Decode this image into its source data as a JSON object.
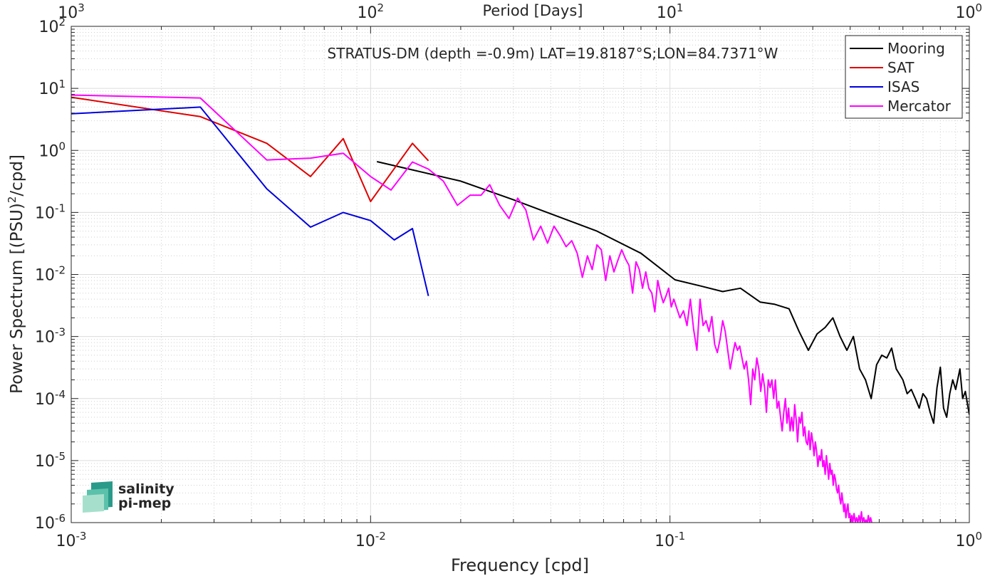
{
  "chart_data": {
    "type": "line",
    "title": "STRATUS-DM (depth =-0.9m) LAT=19.8187°S;LON=84.7371°W",
    "xlabel": "Frequency [cpd]",
    "ylabel_main": "Power Spectrum [(PSU)",
    "ylabel_sup": "2",
    "ylabel_tail": "/cpd]",
    "top_xlabel": "Period [Days]",
    "x_scale": "log",
    "y_scale": "log",
    "xlim": [
      0.001,
      1
    ],
    "ylim": [
      1e-06,
      100
    ],
    "grid": true,
    "legend_position": "top-right",
    "x_ticks": [
      {
        "value": 0.001,
        "base": "10",
        "exp": "-3"
      },
      {
        "value": 0.01,
        "base": "10",
        "exp": "-2"
      },
      {
        "value": 0.1,
        "base": "10",
        "exp": "-1"
      },
      {
        "value": 1,
        "base": "10",
        "exp": "0"
      }
    ],
    "top_ticks": [
      {
        "value": 0.001,
        "base": "10",
        "exp": "3"
      },
      {
        "value": 0.01,
        "base": "10",
        "exp": "2"
      },
      {
        "value": 0.1,
        "base": "10",
        "exp": "1"
      },
      {
        "value": 1,
        "base": "10",
        "exp": "0"
      }
    ],
    "y_ticks": [
      {
        "value": 100,
        "base": "10",
        "exp": "2"
      },
      {
        "value": 10,
        "base": "10",
        "exp": "1"
      },
      {
        "value": 1,
        "base": "10",
        "exp": "0"
      },
      {
        "value": 0.1,
        "base": "10",
        "exp": "-1"
      },
      {
        "value": 0.01,
        "base": "10",
        "exp": "-2"
      },
      {
        "value": 0.001,
        "base": "10",
        "exp": "-3"
      },
      {
        "value": 0.0001,
        "base": "10",
        "exp": "-4"
      },
      {
        "value": 1e-05,
        "base": "10",
        "exp": "-5"
      },
      {
        "value": 1e-06,
        "base": "10",
        "exp": "-6"
      }
    ],
    "series": [
      {
        "name": "Mooring",
        "color": "#000000",
        "points": [
          [
            0.0105,
            0.66
          ],
          [
            0.02,
            0.32
          ],
          [
            0.03,
            0.16
          ],
          [
            0.04,
            0.095
          ],
          [
            0.057,
            0.05
          ],
          [
            0.08,
            0.022
          ],
          [
            0.104,
            0.0082
          ],
          [
            0.127,
            0.0065
          ],
          [
            0.15,
            0.0053
          ],
          [
            0.172,
            0.006
          ],
          [
            0.2,
            0.0036
          ],
          [
            0.224,
            0.0033
          ],
          [
            0.25,
            0.0028
          ],
          [
            0.27,
            0.0012
          ],
          [
            0.29,
            0.0006
          ],
          [
            0.31,
            0.0011
          ],
          [
            0.33,
            0.0014
          ],
          [
            0.35,
            0.002
          ],
          [
            0.37,
            0.001
          ],
          [
            0.39,
            0.0006
          ],
          [
            0.41,
            0.001
          ],
          [
            0.43,
            0.0003
          ],
          [
            0.45,
            0.0002
          ],
          [
            0.47,
            0.0001
          ],
          [
            0.49,
            0.00035
          ],
          [
            0.51,
            0.0005
          ],
          [
            0.53,
            0.00045
          ],
          [
            0.55,
            0.00065
          ],
          [
            0.57,
            0.0003
          ],
          [
            0.6,
            0.0002
          ],
          [
            0.62,
            0.00012
          ],
          [
            0.64,
            0.00014
          ],
          [
            0.66,
            0.0001
          ],
          [
            0.68,
            7e-05
          ],
          [
            0.7,
            0.00012
          ],
          [
            0.72,
            0.0001
          ],
          [
            0.74,
            6e-05
          ],
          [
            0.76,
            4e-05
          ],
          [
            0.78,
            0.00015
          ],
          [
            0.8,
            0.00032
          ],
          [
            0.82,
            7e-05
          ],
          [
            0.84,
            5e-05
          ],
          [
            0.86,
            0.00012
          ],
          [
            0.88,
            0.0002
          ],
          [
            0.9,
            0.00014
          ],
          [
            0.93,
            0.0003
          ],
          [
            0.95,
            0.0001
          ],
          [
            0.97,
            0.00013
          ],
          [
            1.0,
            5.5e-05
          ]
        ]
      },
      {
        "name": "SAT",
        "color": "#e00000",
        "points": [
          [
            0.001,
            7.2
          ],
          [
            0.0027,
            3.5
          ],
          [
            0.0045,
            1.3
          ],
          [
            0.0063,
            0.38
          ],
          [
            0.0081,
            1.55
          ],
          [
            0.01,
            0.15
          ],
          [
            0.0138,
            1.3
          ],
          [
            0.0156,
            0.68
          ]
        ]
      },
      {
        "name": "ISAS",
        "color": "#0000dd",
        "points": [
          [
            0.001,
            3.9
          ],
          [
            0.0027,
            5.0
          ],
          [
            0.0045,
            0.24
          ],
          [
            0.0063,
            0.058
          ],
          [
            0.0081,
            0.1
          ],
          [
            0.01,
            0.074
          ],
          [
            0.012,
            0.036
          ],
          [
            0.0138,
            0.055
          ],
          [
            0.0156,
            0.0045
          ]
        ]
      },
      {
        "name": "Mercator",
        "color": "#ff00ff",
        "points": [
          [
            0.001,
            7.8
          ],
          [
            0.0027,
            7.0
          ],
          [
            0.0045,
            0.7
          ],
          [
            0.0063,
            0.75
          ],
          [
            0.0081,
            0.9
          ],
          [
            0.01,
            0.38
          ],
          [
            0.0117,
            0.23
          ],
          [
            0.0138,
            0.65
          ],
          [
            0.0156,
            0.5
          ],
          [
            0.0175,
            0.32
          ],
          [
            0.0195,
            0.13
          ],
          [
            0.0215,
            0.19
          ],
          [
            0.0234,
            0.19
          ],
          [
            0.025,
            0.28
          ],
          [
            0.027,
            0.13
          ],
          [
            0.029,
            0.08
          ],
          [
            0.031,
            0.17
          ],
          [
            0.033,
            0.11
          ],
          [
            0.035,
            0.036
          ],
          [
            0.037,
            0.06
          ],
          [
            0.039,
            0.032
          ],
          [
            0.041,
            0.06
          ],
          [
            0.043,
            0.042
          ],
          [
            0.045,
            0.028
          ],
          [
            0.047,
            0.035
          ],
          [
            0.049,
            0.022
          ],
          [
            0.051,
            0.009
          ],
          [
            0.053,
            0.02
          ],
          [
            0.055,
            0.012
          ],
          [
            0.057,
            0.03
          ],
          [
            0.059,
            0.025
          ],
          [
            0.061,
            0.008
          ],
          [
            0.063,
            0.02
          ],
          [
            0.065,
            0.011
          ],
          [
            0.067,
            0.017
          ],
          [
            0.069,
            0.025
          ],
          [
            0.071,
            0.018
          ],
          [
            0.073,
            0.014
          ],
          [
            0.075,
            0.005
          ],
          [
            0.077,
            0.016
          ],
          [
            0.079,
            0.012
          ],
          [
            0.081,
            0.006
          ],
          [
            0.083,
            0.011
          ],
          [
            0.085,
            0.006
          ],
          [
            0.087,
            0.005
          ],
          [
            0.089,
            0.0025
          ],
          [
            0.091,
            0.008
          ],
          [
            0.093,
            0.005
          ],
          [
            0.095,
            0.0035
          ],
          [
            0.097,
            0.0045
          ],
          [
            0.099,
            0.006
          ],
          [
            0.101,
            0.003
          ],
          [
            0.103,
            0.004
          ],
          [
            0.105,
            0.003
          ],
          [
            0.108,
            0.002
          ],
          [
            0.111,
            0.0026
          ],
          [
            0.114,
            0.0015
          ],
          [
            0.117,
            0.004
          ],
          [
            0.12,
            0.0013
          ],
          [
            0.123,
            0.0006
          ],
          [
            0.126,
            0.004
          ],
          [
            0.129,
            0.0015
          ],
          [
            0.132,
            0.0018
          ],
          [
            0.135,
            0.0012
          ],
          [
            0.138,
            0.0021
          ],
          [
            0.141,
            0.00075
          ],
          [
            0.144,
            0.00055
          ],
          [
            0.147,
            0.0009
          ],
          [
            0.15,
            0.0018
          ],
          [
            0.153,
            0.0012
          ],
          [
            0.156,
            0.0006
          ],
          [
            0.159,
            0.0003
          ],
          [
            0.162,
            0.0005
          ],
          [
            0.165,
            0.0008
          ],
          [
            0.168,
            0.0006
          ],
          [
            0.171,
            0.0007
          ],
          [
            0.174,
            0.00045
          ],
          [
            0.177,
            0.0003
          ],
          [
            0.18,
            0.0004
          ],
          [
            0.183,
            0.0002
          ],
          [
            0.186,
            8e-05
          ],
          [
            0.189,
            0.0003
          ],
          [
            0.192,
            0.0002
          ],
          [
            0.195,
            0.00045
          ],
          [
            0.198,
            0.0003
          ],
          [
            0.201,
            0.00013
          ],
          [
            0.204,
            0.00025
          ],
          [
            0.207,
            0.00015
          ],
          [
            0.21,
            6e-05
          ],
          [
            0.213,
            0.0002
          ],
          [
            0.216,
            0.00015
          ],
          [
            0.219,
            0.0002
          ],
          [
            0.222,
            0.0001
          ],
          [
            0.225,
            0.0002
          ],
          [
            0.228,
            7e-05
          ],
          [
            0.231,
            9e-05
          ],
          [
            0.234,
            5e-05
          ],
          [
            0.237,
            3e-05
          ],
          [
            0.24,
            6e-05
          ],
          [
            0.243,
            0.0001
          ],
          [
            0.246,
            4e-05
          ],
          [
            0.249,
            7e-05
          ],
          [
            0.252,
            3e-05
          ],
          [
            0.255,
            5e-05
          ],
          [
            0.258,
            3e-05
          ],
          [
            0.261,
            8e-05
          ],
          [
            0.264,
            4.5e-05
          ],
          [
            0.267,
            2e-05
          ],
          [
            0.27,
            5e-05
          ],
          [
            0.273,
            4e-05
          ],
          [
            0.276,
            6e-05
          ],
          [
            0.279,
            2.5e-05
          ],
          [
            0.282,
            3.5e-05
          ],
          [
            0.285,
            2e-05
          ],
          [
            0.288,
            1.8e-05
          ],
          [
            0.291,
            3e-05
          ],
          [
            0.294,
            1.5e-05
          ],
          [
            0.297,
            2.8e-05
          ],
          [
            0.3,
            2e-05
          ],
          [
            0.303,
            1.2e-05
          ],
          [
            0.306,
            2e-05
          ],
          [
            0.309,
            1.4e-05
          ],
          [
            0.312,
            8e-06
          ],
          [
            0.315,
            1.2e-05
          ],
          [
            0.318,
            1e-05
          ],
          [
            0.321,
            1.5e-05
          ],
          [
            0.324,
            8e-06
          ],
          [
            0.327,
            1e-05
          ],
          [
            0.33,
            6e-06
          ],
          [
            0.333,
            1.2e-05
          ],
          [
            0.336,
            8e-06
          ],
          [
            0.339,
            5e-06
          ],
          [
            0.342,
            9e-06
          ],
          [
            0.345,
            6e-06
          ],
          [
            0.348,
            7e-06
          ],
          [
            0.351,
            4e-06
          ],
          [
            0.354,
            6e-06
          ],
          [
            0.357,
            5e-06
          ],
          [
            0.36,
            3.5e-06
          ],
          [
            0.363,
            3e-06
          ],
          [
            0.366,
            4e-06
          ],
          [
            0.369,
            2.5e-06
          ],
          [
            0.372,
            2e-06
          ],
          [
            0.375,
            3e-06
          ],
          [
            0.378,
            2.2e-06
          ],
          [
            0.381,
            1.5e-06
          ],
          [
            0.384,
            2e-06
          ],
          [
            0.387,
            1.2e-06
          ],
          [
            0.39,
            1.6e-06
          ],
          [
            0.393,
            2e-06
          ],
          [
            0.396,
            1.2e-06
          ],
          [
            0.399,
            1.4e-06
          ],
          [
            0.402,
            1e-06
          ],
          [
            0.405,
            1.3e-06
          ],
          [
            0.408,
            1e-06
          ],
          [
            0.412,
            1.4e-06
          ],
          [
            0.416,
            1e-06
          ],
          [
            0.42,
            1.2e-06
          ],
          [
            0.424,
            1e-06
          ],
          [
            0.428,
            1.3e-06
          ],
          [
            0.432,
            1e-06
          ],
          [
            0.436,
            1.5e-06
          ],
          [
            0.44,
            1e-06
          ],
          [
            0.444,
            1.2e-06
          ],
          [
            0.448,
            1e-06
          ],
          [
            0.452,
            1.1e-06
          ],
          [
            0.456,
            1e-06
          ],
          [
            0.46,
            1.3e-06
          ],
          [
            0.464,
            1e-06
          ],
          [
            0.468,
            1.2e-06
          ],
          [
            0.472,
            1e-06
          ]
        ]
      }
    ]
  },
  "logo": {
    "line1": "salinity",
    "line2": "pi-mep",
    "color": "#1aaa9a"
  }
}
